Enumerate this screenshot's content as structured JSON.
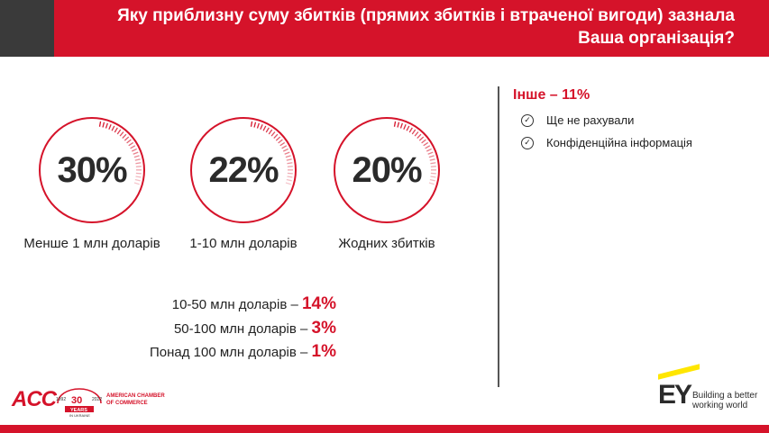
{
  "header": {
    "title": "Яку приблизну суму збитків (прямих збитків і втраченої вигоди) зазнала Ваша організація?"
  },
  "circles": [
    {
      "value": "30%",
      "label": "Менше 1 млн доларів"
    },
    {
      "value": "22%",
      "label": "1-10 млн доларів"
    },
    {
      "value": "20%",
      "label": "Жодних збитків"
    }
  ],
  "extra_rows": [
    {
      "label": "10-50 млн доларів – ",
      "value": "14%"
    },
    {
      "label": "50-100 млн доларів – ",
      "value": "3%"
    },
    {
      "label": "Понад 100 млн доларів – ",
      "value": "1%"
    }
  ],
  "other": {
    "title": "Інше – 11%",
    "items": [
      "Ще не рахували",
      "Конфіденційна інформація"
    ]
  },
  "footer": {
    "acc_logo": "ACC",
    "badge_number": "30",
    "badge_years_left": "1992",
    "badge_years_right": "2022",
    "badge_text": "YEARS",
    "badge_subtext": "IN UKRAINE",
    "amcham_line1": "AMERICAN CHAMBER",
    "amcham_line2": "OF COMMERCE",
    "ey_logo": "EY",
    "ey_tag_line1": "Building a better",
    "ey_tag_line2": "working world"
  },
  "colors": {
    "accent": "#d5132a",
    "dark": "#3a3a3a",
    "ey_yellow": "#ffe600"
  },
  "icons": {
    "check": "check-circle-icon"
  }
}
